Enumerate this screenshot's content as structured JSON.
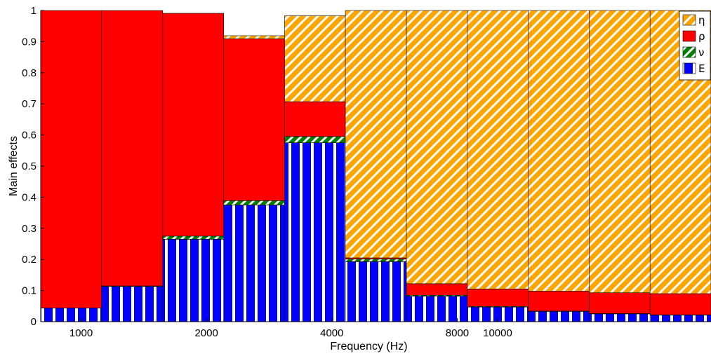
{
  "chart_data": {
    "type": "bar",
    "stacked": true,
    "x_scale": "log",
    "xlabel": "Frequency (Hz)",
    "ylabel": "Main effects",
    "ylim": [
      0,
      1
    ],
    "yticks": [
      "0",
      "0.1",
      "0.2",
      "0.3",
      "0.4",
      "0.5",
      "0.6",
      "0.7",
      "0.8",
      "0.9",
      "1"
    ],
    "xticks": [
      {
        "value": 1000,
        "label": "1000"
      },
      {
        "value": 2000,
        "label": "2000"
      },
      {
        "value": 4000,
        "label": "4000"
      },
      {
        "value": 8000,
        "label": "8000"
      },
      {
        "value": 10000,
        "label": "10000"
      }
    ],
    "bands": [
      {
        "lo": 800,
        "hi": 1120
      },
      {
        "lo": 1120,
        "hi": 1570
      },
      {
        "lo": 1570,
        "hi": 2200
      },
      {
        "lo": 2200,
        "hi": 3080
      },
      {
        "lo": 3080,
        "hi": 4310
      },
      {
        "lo": 4310,
        "hi": 6040
      },
      {
        "lo": 6040,
        "hi": 8460
      },
      {
        "lo": 8460,
        "hi": 11850
      },
      {
        "lo": 11850,
        "hi": 16590
      },
      {
        "lo": 16590,
        "hi": 23230
      },
      {
        "lo": 23230,
        "hi": 32530
      }
    ],
    "series": [
      {
        "name": "E",
        "color": "#0000ff",
        "pattern": "vertical-white-stripes",
        "values": [
          0.044,
          0.113,
          0.265,
          0.375,
          0.575,
          0.193,
          0.082,
          0.047,
          0.033,
          0.025,
          0.021
        ]
      },
      {
        "name": "ν",
        "color": "#008000",
        "pattern": "diagonal-white-stripes",
        "values": [
          0.0,
          0.002,
          0.01,
          0.014,
          0.02,
          0.008,
          0.003,
          0.002,
          0.001,
          0.001,
          0.001
        ]
      },
      {
        "name": "ρ",
        "color": "#ff0000",
        "pattern": "solid",
        "values": [
          0.956,
          0.885,
          0.716,
          0.52,
          0.112,
          0.004,
          0.037,
          0.056,
          0.064,
          0.067,
          0.068
        ]
      },
      {
        "name": "η",
        "color": "#ffa500",
        "pattern": "diagonal-white-stripes",
        "values": [
          0.0,
          0.0,
          0.0,
          0.01,
          0.276,
          0.795,
          0.878,
          0.895,
          0.902,
          0.907,
          0.91
        ]
      }
    ],
    "legend_order": [
      "η",
      "ρ",
      "ν",
      "E"
    ],
    "legend_position": "top-right",
    "grid": false
  }
}
